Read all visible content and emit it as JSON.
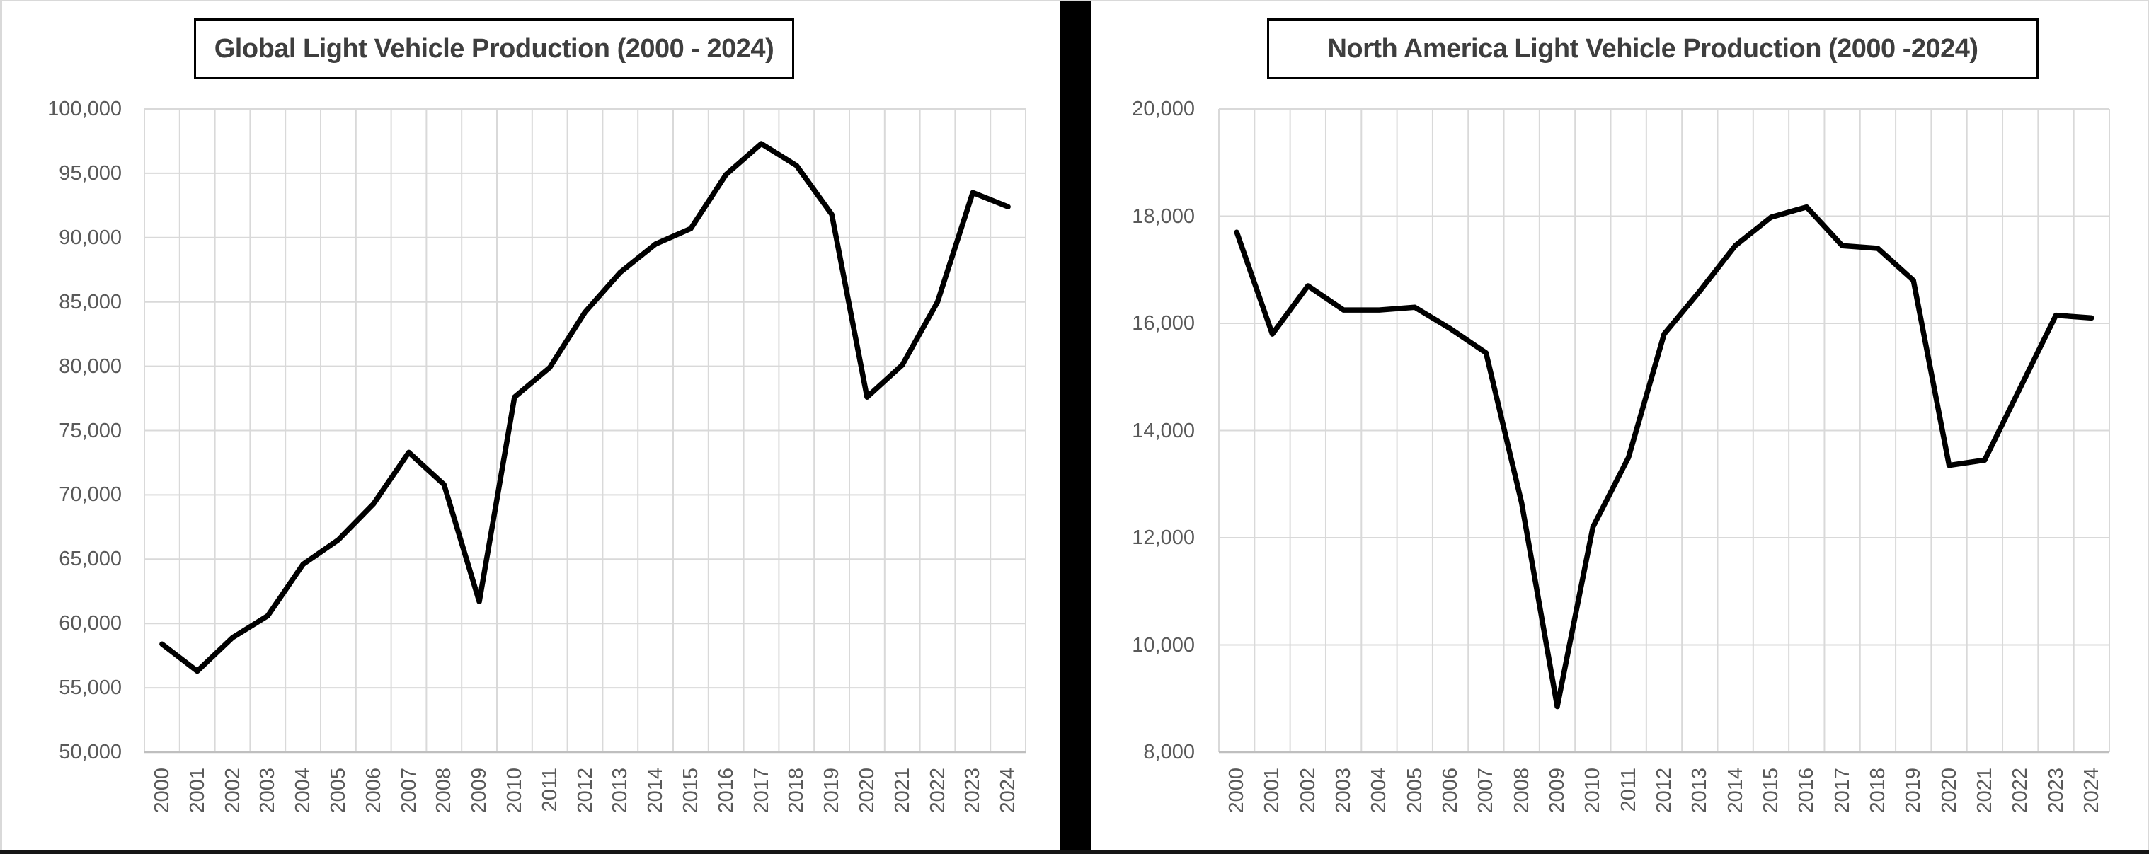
{
  "page": {
    "background": "#ffffff",
    "divider_color": "#000000",
    "border_top_color": "#d9d9d9",
    "border_side_color": "#d9d9d9",
    "border_bottom_color": "#161616"
  },
  "colors": {
    "grid": "#d9d9d9",
    "axis_line": "#bfbfbf",
    "tick_label": "#595959",
    "title_text": "#3e3e3e",
    "series_line": "#000000"
  },
  "chart_data": [
    {
      "type": "line",
      "title": "Global Light Vehicle Production (2000 - 2024)",
      "xlabel": "",
      "ylabel": "",
      "grid": true,
      "legend_position": "none",
      "ylim": [
        50000,
        100000
      ],
      "ytick_step": 5000,
      "y_tick_labels": [
        "100,000",
        "95,000",
        "90,000",
        "85,000",
        "80,000",
        "75,000",
        "70,000",
        "65,000",
        "60,000",
        "55,000",
        "50,000"
      ],
      "categories": [
        "2000",
        "2001",
        "2002",
        "2003",
        "2004",
        "2005",
        "2006",
        "2007",
        "2008",
        "2009",
        "2010",
        "2011",
        "2012",
        "2013",
        "2014",
        "2015",
        "2016",
        "2017",
        "2018",
        "2019",
        "2020",
        "2021",
        "2022",
        "2023",
        "2024"
      ],
      "values": [
        58400,
        56300,
        58900,
        60600,
        64600,
        66500,
        69300,
        73300,
        70800,
        61700,
        77600,
        79900,
        84200,
        87300,
        89500,
        90700,
        94900,
        97300,
        95600,
        91800,
        77600,
        80100,
        85000,
        93500,
        92400
      ]
    },
    {
      "type": "line",
      "title": "North America Light Vehicle Production (2000 -2024)",
      "xlabel": "",
      "ylabel": "",
      "grid": true,
      "legend_position": "none",
      "ylim": [
        8000,
        20000
      ],
      "ytick_step": 2000,
      "y_tick_labels": [
        "20,000",
        "18,000",
        "16,000",
        "14,000",
        "12,000",
        "10,000",
        "8,000"
      ],
      "categories": [
        "2000",
        "2001",
        "2002",
        "2003",
        "2004",
        "2005",
        "2006",
        "2007",
        "2008",
        "2009",
        "2010",
        "2011",
        "2012",
        "2013",
        "2014",
        "2015",
        "2016",
        "2017",
        "2018",
        "2019",
        "2020",
        "2021",
        "2022",
        "2023",
        "2024"
      ],
      "values": [
        17700,
        15800,
        16700,
        16250,
        16250,
        16300,
        15900,
        15450,
        12650,
        8850,
        12200,
        13500,
        15800,
        16600,
        17450,
        17980,
        18170,
        17450,
        17400,
        16800,
        13350,
        13450,
        14800,
        16150,
        16100
      ]
    }
  ]
}
